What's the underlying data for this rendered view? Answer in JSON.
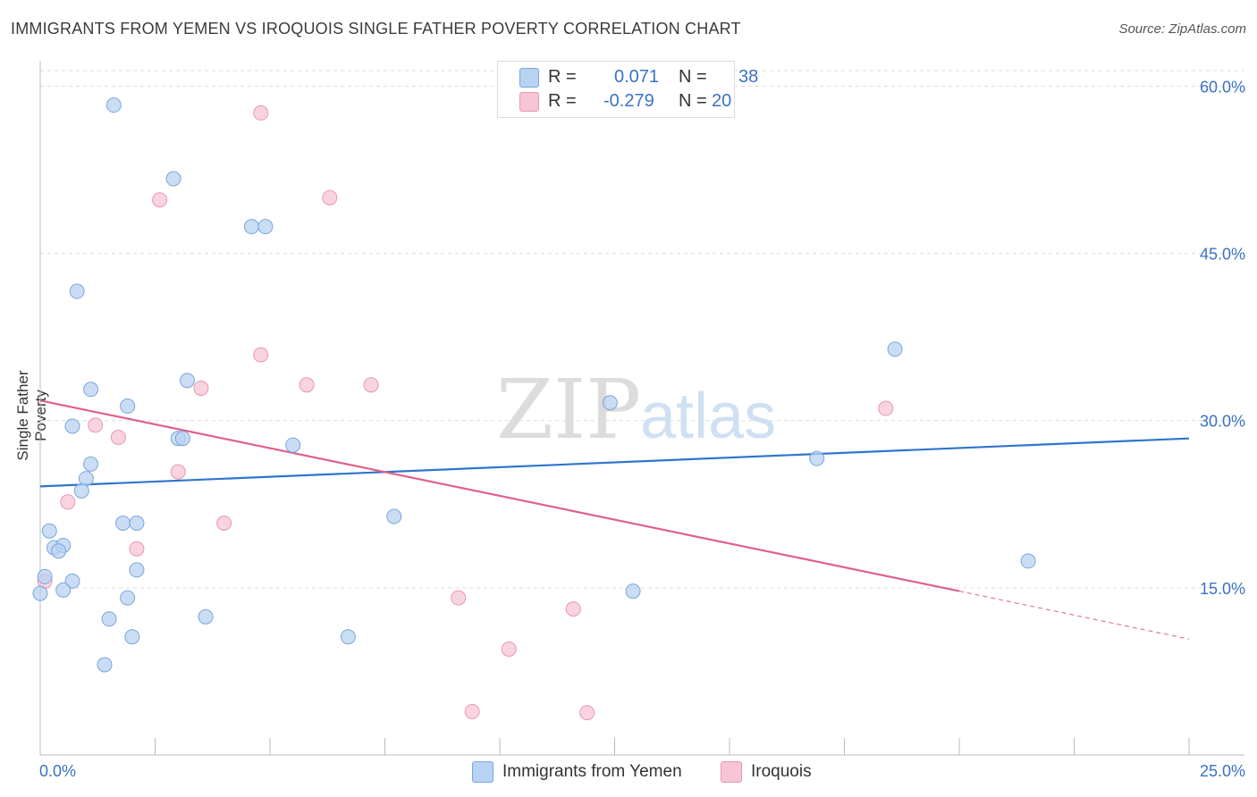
{
  "title": "IMMIGRANTS FROM YEMEN VS IROQUOIS SINGLE FATHER POVERTY CORRELATION CHART",
  "source": "Source: ZipAtlas.com",
  "watermark": {
    "zip": "ZIP",
    "atlas": "atlas"
  },
  "legend": {
    "r_label": "R =",
    "n_label": "N =",
    "rows": [
      {
        "r": "0.071",
        "n": "38"
      },
      {
        "r": "-0.279",
        "n": "20"
      }
    ]
  },
  "colors": {
    "blue_fill": "#b8d2f2",
    "blue_stroke": "#7aa6dc",
    "blue_line": "#2f74cc",
    "pink_fill": "#f7c5d5",
    "pink_stroke": "#e996b2",
    "pink_line": "#e0608c",
    "axis_text": "#3a72c4",
    "grid": "#dddddd"
  },
  "chart_data": {
    "type": "scatter",
    "title": "IMMIGRANTS FROM YEMEN VS IROQUOIS SINGLE FATHER POVERTY CORRELATION CHART",
    "xlabel": "",
    "ylabel": "Single Father Poverty",
    "xlim": [
      0,
      25
    ],
    "ylim": [
      0,
      60
    ],
    "x_tick_labels": [
      "0.0%",
      "25.0%"
    ],
    "y_tick_labels": [
      "15.0%",
      "30.0%",
      "45.0%",
      "60.0%"
    ],
    "y_ticks": [
      15,
      30,
      45,
      60
    ],
    "grid": true,
    "legend_position": "bottom",
    "series": [
      {
        "name": "Immigrants from Yemen",
        "color": "#7aa6dc",
        "points": [
          [
            1.6,
            58.3
          ],
          [
            2.9,
            51.7
          ],
          [
            4.6,
            47.4
          ],
          [
            4.9,
            47.4
          ],
          [
            0.8,
            41.6
          ],
          [
            18.6,
            36.4
          ],
          [
            3.2,
            33.6
          ],
          [
            1.1,
            32.8
          ],
          [
            1.9,
            31.3
          ],
          [
            12.4,
            31.6
          ],
          [
            0.7,
            29.5
          ],
          [
            3.0,
            28.4
          ],
          [
            3.1,
            28.4
          ],
          [
            5.5,
            27.8
          ],
          [
            16.9,
            26.6
          ],
          [
            1.1,
            26.1
          ],
          [
            1.0,
            24.8
          ],
          [
            0.9,
            23.7
          ],
          [
            7.7,
            21.4
          ],
          [
            1.8,
            20.8
          ],
          [
            2.1,
            20.8
          ],
          [
            0.2,
            20.1
          ],
          [
            0.3,
            18.6
          ],
          [
            0.5,
            18.8
          ],
          [
            0.4,
            18.3
          ],
          [
            21.5,
            17.4
          ],
          [
            2.1,
            16.6
          ],
          [
            0.1,
            16.0
          ],
          [
            0.7,
            15.6
          ],
          [
            0.5,
            14.8
          ],
          [
            12.9,
            14.7
          ],
          [
            1.9,
            14.1
          ],
          [
            0.0,
            14.5
          ],
          [
            1.5,
            12.2
          ],
          [
            3.6,
            12.4
          ],
          [
            2.0,
            10.6
          ],
          [
            6.7,
            10.6
          ],
          [
            1.4,
            8.1
          ]
        ]
      },
      {
        "name": "Iroquois",
        "color": "#e996b2",
        "points": [
          [
            4.8,
            57.6
          ],
          [
            2.6,
            49.8
          ],
          [
            6.3,
            50.0
          ],
          [
            4.8,
            35.9
          ],
          [
            3.5,
            32.9
          ],
          [
            5.8,
            33.2
          ],
          [
            7.2,
            33.2
          ],
          [
            18.4,
            31.1
          ],
          [
            1.2,
            29.6
          ],
          [
            1.7,
            28.5
          ],
          [
            3.0,
            25.4
          ],
          [
            0.6,
            22.7
          ],
          [
            4.0,
            20.8
          ],
          [
            2.1,
            18.5
          ],
          [
            0.1,
            15.6
          ],
          [
            9.1,
            14.1
          ],
          [
            11.6,
            13.1
          ],
          [
            10.2,
            9.5
          ],
          [
            9.4,
            3.9
          ],
          [
            11.9,
            3.8
          ]
        ]
      }
    ],
    "trend_lines": [
      {
        "series": "Immigrants from Yemen",
        "x": [
          0,
          25
        ],
        "y": [
          24.1,
          28.4
        ]
      },
      {
        "series": "Iroquois",
        "x": [
          0,
          20
        ],
        "y": [
          31.8,
          14.7
        ],
        "dashed_to": [
          25,
          10.4
        ]
      }
    ]
  }
}
